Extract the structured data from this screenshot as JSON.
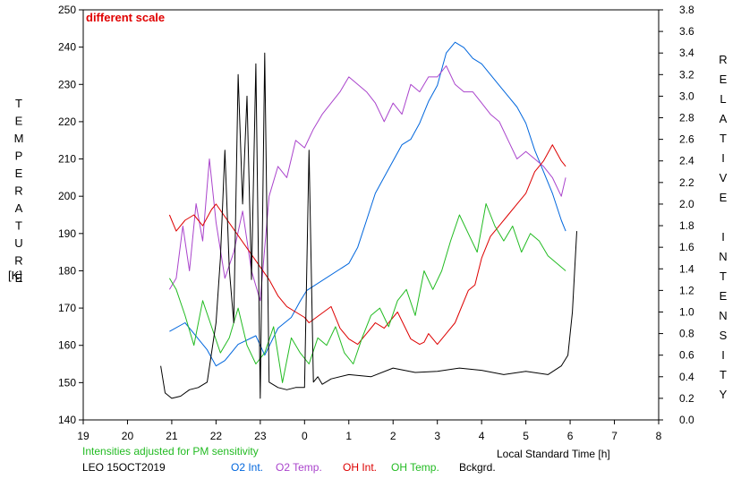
{
  "chart_data": {
    "type": "line",
    "annotation": "different scale",
    "left_axis": {
      "label": "TEMPERATURE",
      "unit": "[K]",
      "range": [
        140,
        250
      ],
      "ticks": [
        140,
        150,
        160,
        170,
        180,
        190,
        200,
        210,
        220,
        230,
        240,
        250
      ]
    },
    "right_axis": {
      "label": "RELATIVE INTENSITY",
      "range": [
        0.0,
        3.8
      ],
      "ticks": [
        "0.0",
        "0.2",
        "0.4",
        "0.6",
        "0.8",
        "1.0",
        "1.2",
        "1.4",
        "1.6",
        "1.8",
        "2.0",
        "2.2",
        "2.4",
        "2.6",
        "2.8",
        "3.0",
        "3.2",
        "3.4",
        "3.6",
        "3.8"
      ]
    },
    "x_axis": {
      "label": "Local Standard Time [h]",
      "range": [
        19,
        32
      ],
      "ticks": [
        {
          "h": 19,
          "label": "19"
        },
        {
          "h": 20,
          "label": "20"
        },
        {
          "h": 21,
          "label": "21"
        },
        {
          "h": 22,
          "label": "22"
        },
        {
          "h": 23,
          "label": "23"
        },
        {
          "h": 24,
          "label": "0"
        },
        {
          "h": 25,
          "label": "1"
        },
        {
          "h": 26,
          "label": "2"
        },
        {
          "h": 27,
          "label": "3"
        },
        {
          "h": 28,
          "label": "4"
        },
        {
          "h": 29,
          "label": "5"
        },
        {
          "h": 30,
          "label": "6"
        },
        {
          "h": 31,
          "label": "7"
        },
        {
          "h": 32,
          "label": "8"
        }
      ]
    },
    "footer": {
      "note": "Intensities adjusted for PM sensitivity",
      "station": "LEO 15OCT2019",
      "legend": [
        {
          "name": "O2 Int.",
          "color": "#0066dd"
        },
        {
          "name": "O2 Temp.",
          "color": "#aa44cc"
        },
        {
          "name": "OH Int.",
          "color": "#dd0000"
        },
        {
          "name": "OH Temp.",
          "color": "#22bb22"
        },
        {
          "name": "Bckgrd.",
          "color": "#000000"
        }
      ]
    },
    "series": [
      {
        "name": "O2 Int.",
        "axis": "right",
        "color": "#0066dd",
        "x": [
          20.95,
          21.3,
          21.5,
          21.8,
          22.0,
          22.2,
          22.5,
          22.9,
          23.1,
          23.4,
          23.7,
          23.9,
          24.05,
          25.0,
          25.2,
          25.4,
          25.6,
          25.8,
          26.0,
          26.2,
          26.4,
          26.6,
          26.8,
          27.0,
          27.2,
          27.4,
          27.6,
          27.8,
          28.0,
          28.2,
          28.4,
          28.6,
          28.8,
          29.0,
          29.2,
          29.4,
          29.6,
          29.8,
          29.9
        ],
        "values": [
          0.82,
          0.9,
          0.8,
          0.65,
          0.5,
          0.55,
          0.7,
          0.78,
          0.6,
          0.85,
          0.95,
          1.1,
          1.2,
          1.45,
          1.6,
          1.85,
          2.1,
          2.25,
          2.4,
          2.55,
          2.6,
          2.75,
          2.95,
          3.1,
          3.4,
          3.5,
          3.45,
          3.35,
          3.3,
          3.2,
          3.1,
          3.0,
          2.9,
          2.75,
          2.5,
          2.3,
          2.1,
          1.85,
          1.75
        ]
      },
      {
        "name": "O2 Temp.",
        "axis": "left",
        "color": "#aa44cc",
        "x": [
          20.95,
          21.1,
          21.25,
          21.4,
          21.55,
          21.7,
          21.85,
          22.0,
          22.2,
          22.4,
          22.6,
          22.8,
          23.0,
          23.2,
          23.4,
          23.6,
          23.8,
          24.0,
          24.2,
          24.4,
          24.6,
          24.8,
          25.0,
          25.2,
          25.4,
          25.6,
          25.8,
          26.0,
          26.2,
          26.4,
          26.6,
          26.8,
          27.0,
          27.2,
          27.4,
          27.6,
          27.8,
          28.0,
          28.2,
          28.4,
          28.6,
          28.8,
          29.0,
          29.2,
          29.4,
          29.6,
          29.8,
          29.9
        ],
        "values": [
          175,
          178,
          192,
          180,
          198,
          188,
          210,
          193,
          178,
          185,
          196,
          180,
          172,
          200,
          208,
          205,
          215,
          213,
          218,
          222,
          225,
          228,
          232,
          230,
          228,
          225,
          220,
          225,
          222,
          230,
          228,
          232,
          232,
          235,
          230,
          228,
          228,
          225,
          222,
          220,
          215,
          210,
          212,
          210,
          208,
          205,
          200,
          205
        ]
      },
      {
        "name": "OH Int.",
        "axis": "right",
        "color": "#dd0000",
        "x": [
          20.95,
          21.1,
          21.3,
          21.5,
          21.7,
          21.9,
          22.0,
          23.2,
          23.4,
          23.6,
          23.8,
          24.0,
          24.1,
          24.6,
          24.8,
          25.0,
          25.2,
          25.4,
          25.6,
          25.8,
          26.0,
          26.1,
          26.4,
          26.6,
          26.7,
          26.8,
          27.0,
          27.2,
          27.4,
          27.5,
          27.7,
          27.85,
          28.0,
          28.2,
          28.4,
          28.6,
          28.8,
          29.0,
          29.2,
          29.4,
          29.6,
          29.8,
          29.9
        ],
        "values": [
          1.9,
          1.75,
          1.85,
          1.9,
          1.8,
          1.95,
          2.0,
          1.3,
          1.15,
          1.05,
          1.0,
          0.95,
          0.9,
          1.05,
          0.85,
          0.75,
          0.7,
          0.8,
          0.9,
          0.85,
          0.95,
          1.0,
          0.75,
          0.7,
          0.72,
          0.8,
          0.7,
          0.8,
          0.9,
          1.0,
          1.2,
          1.25,
          1.5,
          1.7,
          1.8,
          1.9,
          2.0,
          2.1,
          2.3,
          2.4,
          2.55,
          2.4,
          2.35
        ]
      },
      {
        "name": "OH Temp.",
        "axis": "left",
        "color": "#22bb22",
        "x": [
          20.95,
          21.1,
          21.3,
          21.5,
          21.7,
          21.9,
          22.1,
          22.3,
          22.5,
          22.7,
          22.9,
          23.1,
          23.3,
          23.5,
          23.7,
          23.9,
          24.1,
          24.3,
          24.5,
          24.7,
          24.9,
          25.1,
          25.3,
          25.5,
          25.7,
          25.9,
          26.1,
          26.3,
          26.5,
          26.7,
          26.9,
          27.1,
          27.3,
          27.5,
          27.7,
          27.9,
          28.1,
          28.3,
          28.5,
          28.7,
          28.9,
          29.1,
          29.3,
          29.5,
          29.7,
          29.9
        ],
        "values": [
          178,
          175,
          168,
          160,
          172,
          165,
          158,
          162,
          170,
          160,
          155,
          158,
          165,
          150,
          162,
          158,
          155,
          162,
          160,
          165,
          158,
          155,
          162,
          168,
          170,
          165,
          172,
          175,
          168,
          180,
          175,
          180,
          188,
          195,
          190,
          185,
          198,
          192,
          188,
          192,
          185,
          190,
          188,
          184,
          182,
          180
        ]
      },
      {
        "name": "Bckgrd.",
        "axis": "right",
        "color": "#000000",
        "x": [
          20.75,
          20.85,
          21.0,
          21.2,
          21.4,
          21.6,
          21.8,
          22.0,
          22.1,
          22.2,
          22.3,
          22.4,
          22.5,
          22.6,
          22.7,
          22.8,
          22.9,
          23.0,
          23.1,
          23.2,
          23.4,
          23.6,
          23.8,
          24.0,
          24.1,
          24.2,
          24.3,
          24.4,
          24.6,
          25.0,
          25.5,
          26.0,
          26.5,
          27.0,
          27.5,
          28.0,
          28.5,
          29.0,
          29.5,
          29.8,
          29.95,
          30.05,
          30.15
        ],
        "values": [
          0.5,
          0.25,
          0.2,
          0.22,
          0.28,
          0.3,
          0.35,
          0.9,
          1.5,
          2.5,
          1.4,
          0.9,
          3.2,
          2.0,
          3.0,
          1.3,
          3.3,
          0.2,
          3.4,
          0.35,
          0.3,
          0.28,
          0.3,
          0.3,
          2.5,
          0.35,
          0.4,
          0.33,
          0.38,
          0.42,
          0.4,
          0.48,
          0.44,
          0.45,
          0.48,
          0.46,
          0.42,
          0.45,
          0.42,
          0.5,
          0.6,
          1.0,
          1.75
        ]
      }
    ]
  }
}
